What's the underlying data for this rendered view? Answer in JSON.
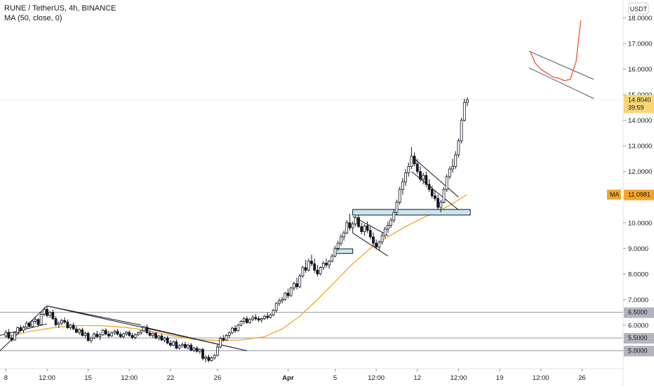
{
  "header": {
    "title": "RUNE / TetherUS, 4h, BINANCE",
    "indicator": "MA (50, close, 0)"
  },
  "price_axis": {
    "currency_button": "USDT"
  },
  "chart_data": {
    "type": "candlestick",
    "symbol": "RUNE / TetherUS",
    "interval": "4h",
    "exchange": "BINANCE",
    "ylim": [
      4.3,
      18.7
    ],
    "y_ticks": [
      "5.0000",
      "6.0000",
      "7.0000",
      "8.0000",
      "9.0000",
      "10.0000",
      "11.0000",
      "12.0000",
      "13.0000",
      "14.0000",
      "15.0000",
      "16.0000",
      "17.0000",
      "18.0000"
    ],
    "x_ticks": [
      "8",
      "12:00",
      "15",
      "12:00",
      "22",
      "26",
      "Apr",
      "5",
      "12:00",
      "12",
      "12:00",
      "19",
      "12:00",
      "26"
    ],
    "x_tick_days": [
      8,
      11.5,
      15,
      18.5,
      22,
      26,
      32,
      36,
      39.5,
      43,
      46.5,
      50,
      53.5,
      57
    ],
    "x_range_days": [
      7.5,
      60.5
    ],
    "last_price": {
      "value": "14.8040",
      "countdown": "39:59"
    },
    "ma": {
      "label": "MA",
      "value": "11.0981",
      "period": 50
    },
    "horizontal_levels": [
      "6.5000",
      "5.5000",
      "5.0000"
    ],
    "candles": [
      [
        8.0,
        5.58,
        5.8,
        5.5,
        5.72
      ],
      [
        8.25,
        5.72,
        5.85,
        5.45,
        5.5
      ],
      [
        8.5,
        5.5,
        5.62,
        5.35,
        5.42
      ],
      [
        8.75,
        5.42,
        5.75,
        5.4,
        5.7
      ],
      [
        9.0,
        5.7,
        5.95,
        5.65,
        5.9
      ],
      [
        9.25,
        5.9,
        6.0,
        5.75,
        5.8
      ],
      [
        9.5,
        5.8,
        5.98,
        5.7,
        5.92
      ],
      [
        9.75,
        5.92,
        6.15,
        5.85,
        6.08
      ],
      [
        10.0,
        6.08,
        6.12,
        5.88,
        5.95
      ],
      [
        10.25,
        5.95,
        6.2,
        5.9,
        6.15
      ],
      [
        10.5,
        6.15,
        6.3,
        6.05,
        6.22
      ],
      [
        10.75,
        6.22,
        6.28,
        5.95,
        6.02
      ],
      [
        11.0,
        6.02,
        6.5,
        6.0,
        6.42
      ],
      [
        11.25,
        6.42,
        6.7,
        6.35,
        6.62
      ],
      [
        11.5,
        6.62,
        6.72,
        6.3,
        6.38
      ],
      [
        11.75,
        6.38,
        6.55,
        6.28,
        6.5
      ],
      [
        12.0,
        6.5,
        6.6,
        6.2,
        6.25
      ],
      [
        12.25,
        6.25,
        6.35,
        5.95,
        6.02
      ],
      [
        12.5,
        6.02,
        6.15,
        5.9,
        6.08
      ],
      [
        12.75,
        6.08,
        6.25,
        6.0,
        6.18
      ],
      [
        13.0,
        6.18,
        6.3,
        6.05,
        6.12
      ],
      [
        13.25,
        6.12,
        6.22,
        5.85,
        5.9
      ],
      [
        13.5,
        5.9,
        6.05,
        5.82,
        6.0
      ],
      [
        13.75,
        6.0,
        6.1,
        5.8,
        5.85
      ],
      [
        14.0,
        5.85,
        5.95,
        5.68,
        5.72
      ],
      [
        14.25,
        5.72,
        5.88,
        5.62,
        5.82
      ],
      [
        14.5,
        5.82,
        5.9,
        5.55,
        5.6
      ],
      [
        14.75,
        5.6,
        5.75,
        5.5,
        5.68
      ],
      [
        15.0,
        5.68,
        5.75,
        5.35,
        5.4
      ],
      [
        15.25,
        5.4,
        5.55,
        5.3,
        5.5
      ],
      [
        15.5,
        5.5,
        5.72,
        5.45,
        5.65
      ],
      [
        15.75,
        5.65,
        5.78,
        5.5,
        5.55
      ],
      [
        16.0,
        5.55,
        5.7,
        5.42,
        5.62
      ],
      [
        16.25,
        5.62,
        5.85,
        5.58,
        5.8
      ],
      [
        16.5,
        5.8,
        5.88,
        5.6,
        5.65
      ],
      [
        16.75,
        5.65,
        5.78,
        5.5,
        5.58
      ],
      [
        17.0,
        5.58,
        5.75,
        5.55,
        5.7
      ],
      [
        17.25,
        5.7,
        5.82,
        5.62,
        5.76
      ],
      [
        17.5,
        5.76,
        5.86,
        5.6,
        5.64
      ],
      [
        17.75,
        5.64,
        5.74,
        5.5,
        5.55
      ],
      [
        18.0,
        5.55,
        5.7,
        5.48,
        5.66
      ],
      [
        18.25,
        5.66,
        5.78,
        5.58,
        5.72
      ],
      [
        18.5,
        5.72,
        5.8,
        5.55,
        5.6
      ],
      [
        18.75,
        5.6,
        5.7,
        5.45,
        5.52
      ],
      [
        19.0,
        5.52,
        5.68,
        5.45,
        5.62
      ],
      [
        19.25,
        5.62,
        5.76,
        5.58,
        5.7
      ],
      [
        19.5,
        5.7,
        5.82,
        5.62,
        5.78
      ],
      [
        19.75,
        5.78,
        5.98,
        5.72,
        5.92
      ],
      [
        20.0,
        5.92,
        6.02,
        5.65,
        5.7
      ],
      [
        20.25,
        5.7,
        5.8,
        5.55,
        5.6
      ],
      [
        20.5,
        5.6,
        5.72,
        5.5,
        5.68
      ],
      [
        20.75,
        5.68,
        5.74,
        5.45,
        5.5
      ],
      [
        21.0,
        5.5,
        5.62,
        5.4,
        5.58
      ],
      [
        21.25,
        5.58,
        5.66,
        5.38,
        5.42
      ],
      [
        21.5,
        5.42,
        5.55,
        5.32,
        5.5
      ],
      [
        21.75,
        5.5,
        5.58,
        5.25,
        5.3
      ],
      [
        22.0,
        5.3,
        5.42,
        5.15,
        5.22
      ],
      [
        22.25,
        5.22,
        5.4,
        5.18,
        5.35
      ],
      [
        22.5,
        5.35,
        5.45,
        5.05,
        5.1
      ],
      [
        22.75,
        5.1,
        5.25,
        5.05,
        5.2
      ],
      [
        23.0,
        5.2,
        5.32,
        5.12,
        5.25
      ],
      [
        23.25,
        5.25,
        5.35,
        5.08,
        5.12
      ],
      [
        23.5,
        5.12,
        5.28,
        5.05,
        5.22
      ],
      [
        23.75,
        5.22,
        5.3,
        4.98,
        5.02
      ],
      [
        24.0,
        5.02,
        5.15,
        4.95,
        5.1
      ],
      [
        24.25,
        5.1,
        5.18,
        4.92,
        4.98
      ],
      [
        24.5,
        4.98,
        5.1,
        4.88,
        5.05
      ],
      [
        24.75,
        5.05,
        5.12,
        4.62,
        4.7
      ],
      [
        25.0,
        4.7,
        4.82,
        4.55,
        4.75
      ],
      [
        25.25,
        4.75,
        4.85,
        4.55,
        4.62
      ],
      [
        25.5,
        4.62,
        4.78,
        4.58,
        4.72
      ],
      [
        25.75,
        4.72,
        4.88,
        4.65,
        4.82
      ],
      [
        26.0,
        4.82,
        5.25,
        4.78,
        5.15
      ],
      [
        26.25,
        5.15,
        5.55,
        5.1,
        5.48
      ],
      [
        26.5,
        5.48,
        5.62,
        5.35,
        5.42
      ],
      [
        26.75,
        5.42,
        5.65,
        5.38,
        5.6
      ],
      [
        27.0,
        5.6,
        5.75,
        5.5,
        5.7
      ],
      [
        27.25,
        5.7,
        5.95,
        5.65,
        5.88
      ],
      [
        27.5,
        5.88,
        6.0,
        5.7,
        5.78
      ],
      [
        27.75,
        5.78,
        6.05,
        5.75,
        6.0
      ],
      [
        28.0,
        6.0,
        6.2,
        5.95,
        6.15
      ],
      [
        28.25,
        6.15,
        6.32,
        6.05,
        6.25
      ],
      [
        28.5,
        6.25,
        6.35,
        6.05,
        6.1
      ],
      [
        28.75,
        6.1,
        6.28,
        6.05,
        6.22
      ],
      [
        29.0,
        6.22,
        6.38,
        6.15,
        6.3
      ],
      [
        29.25,
        6.3,
        6.42,
        6.18,
        6.25
      ],
      [
        29.5,
        6.25,
        6.35,
        6.12,
        6.2
      ],
      [
        29.75,
        6.2,
        6.3,
        6.1,
        6.26
      ],
      [
        30.0,
        6.26,
        6.4,
        6.2,
        6.35
      ],
      [
        30.25,
        6.35,
        6.5,
        6.22,
        6.3
      ],
      [
        30.5,
        6.3,
        6.45,
        6.25,
        6.4
      ],
      [
        30.75,
        6.4,
        6.62,
        6.35,
        6.58
      ],
      [
        31.0,
        6.58,
        6.9,
        6.5,
        6.85
      ],
      [
        31.25,
        6.85,
        7.05,
        6.75,
        6.95
      ],
      [
        31.5,
        6.95,
        7.1,
        6.85,
        7.0
      ],
      [
        31.75,
        7.0,
        7.3,
        6.95,
        7.25
      ],
      [
        32.0,
        7.25,
        7.42,
        7.05,
        7.15
      ],
      [
        32.25,
        7.15,
        7.5,
        7.1,
        7.45
      ],
      [
        32.5,
        7.45,
        7.7,
        7.35,
        7.62
      ],
      [
        32.75,
        7.62,
        7.85,
        7.4,
        7.5
      ],
      [
        33.0,
        7.5,
        8.0,
        7.45,
        7.92
      ],
      [
        33.25,
        7.92,
        8.32,
        7.85,
        8.25
      ],
      [
        33.5,
        8.25,
        8.55,
        8.05,
        8.15
      ],
      [
        33.75,
        8.15,
        8.6,
        8.1,
        8.5
      ],
      [
        34.0,
        8.5,
        8.75,
        8.3,
        8.4
      ],
      [
        34.25,
        8.4,
        8.6,
        8.05,
        8.15
      ],
      [
        34.5,
        8.15,
        8.35,
        7.9,
        8.0
      ],
      [
        34.75,
        8.0,
        8.3,
        7.95,
        8.25
      ],
      [
        35.0,
        8.25,
        8.5,
        8.15,
        8.42
      ],
      [
        35.25,
        8.42,
        8.6,
        8.25,
        8.35
      ],
      [
        35.5,
        8.35,
        8.55,
        8.2,
        8.5
      ],
      [
        35.75,
        8.5,
        8.78,
        8.45,
        8.7
      ],
      [
        36.0,
        8.7,
        9.1,
        8.65,
        9.0
      ],
      [
        36.25,
        9.0,
        9.3,
        8.9,
        9.2
      ],
      [
        36.5,
        9.2,
        9.55,
        9.1,
        9.45
      ],
      [
        36.75,
        9.45,
        9.7,
        9.3,
        9.6
      ],
      [
        37.0,
        9.6,
        10.1,
        9.55,
        10.0
      ],
      [
        37.25,
        10.0,
        10.35,
        9.7,
        9.8
      ],
      [
        37.5,
        9.8,
        10.05,
        9.6,
        9.95
      ],
      [
        37.75,
        9.95,
        10.28,
        9.85,
        10.2
      ],
      [
        38.0,
        10.2,
        10.3,
        9.8,
        9.85
      ],
      [
        38.25,
        9.85,
        10.0,
        9.55,
        9.65
      ],
      [
        38.5,
        9.65,
        9.95,
        9.5,
        9.88
      ],
      [
        38.75,
        9.88,
        10.05,
        9.6,
        9.7
      ],
      [
        39.0,
        9.7,
        9.85,
        9.35,
        9.45
      ],
      [
        39.25,
        9.45,
        9.62,
        9.1,
        9.2
      ],
      [
        39.5,
        9.2,
        9.35,
        8.95,
        9.05
      ],
      [
        39.75,
        9.05,
        9.3,
        8.9,
        9.25
      ],
      [
        40.0,
        9.25,
        9.6,
        9.15,
        9.5
      ],
      [
        40.25,
        9.5,
        9.85,
        9.4,
        9.75
      ],
      [
        40.5,
        9.75,
        10.05,
        9.6,
        9.9
      ],
      [
        40.75,
        9.9,
        10.2,
        9.8,
        10.1
      ],
      [
        41.0,
        10.1,
        10.5,
        10.0,
        10.4
      ],
      [
        41.25,
        10.4,
        10.9,
        10.3,
        10.8
      ],
      [
        41.5,
        10.8,
        11.4,
        10.7,
        11.3
      ],
      [
        41.75,
        11.3,
        11.75,
        11.1,
        11.6
      ],
      [
        42.0,
        11.6,
        12.1,
        11.45,
        11.95
      ],
      [
        42.25,
        11.95,
        12.35,
        11.8,
        12.2
      ],
      [
        42.5,
        12.2,
        12.95,
        12.1,
        12.6
      ],
      [
        42.75,
        12.6,
        12.75,
        12.2,
        12.3
      ],
      [
        43.0,
        12.3,
        12.5,
        11.9,
        12.0
      ],
      [
        43.25,
        12.0,
        12.2,
        11.6,
        11.7
      ],
      [
        43.5,
        11.7,
        11.95,
        11.5,
        11.85
      ],
      [
        43.75,
        11.85,
        12.0,
        11.4,
        11.5
      ],
      [
        44.0,
        11.5,
        11.7,
        11.2,
        11.3
      ],
      [
        44.25,
        11.3,
        11.45,
        10.95,
        11.05
      ],
      [
        44.5,
        11.05,
        11.25,
        10.85,
        10.95
      ],
      [
        44.75,
        10.95,
        11.1,
        10.5,
        10.6
      ],
      [
        45.0,
        10.6,
        10.9,
        10.4,
        10.8
      ],
      [
        45.25,
        10.8,
        11.4,
        10.75,
        11.3
      ],
      [
        45.5,
        11.3,
        11.9,
        11.2,
        11.8
      ],
      [
        45.75,
        11.8,
        12.2,
        11.7,
        12.1
      ],
      [
        46.0,
        12.1,
        12.5,
        11.95,
        12.2
      ],
      [
        46.25,
        12.2,
        12.8,
        12.1,
        12.65
      ],
      [
        46.5,
        12.65,
        13.3,
        12.55,
        13.2
      ],
      [
        46.75,
        13.2,
        14.1,
        13.1,
        14.0
      ],
      [
        47.0,
        14.0,
        14.85,
        13.95,
        14.7
      ],
      [
        47.25,
        14.7,
        14.9,
        14.55,
        14.8
      ]
    ],
    "ma50": [
      [
        8.0,
        5.55
      ],
      [
        10.0,
        5.75
      ],
      [
        12.0,
        5.9
      ],
      [
        14.0,
        5.98
      ],
      [
        16.0,
        5.98
      ],
      [
        18.0,
        5.92
      ],
      [
        20.0,
        5.8
      ],
      [
        22.0,
        5.6
      ],
      [
        24.0,
        5.45
      ],
      [
        26.0,
        5.4
      ],
      [
        28.0,
        5.42
      ],
      [
        30.0,
        5.55
      ],
      [
        31.5,
        5.85
      ],
      [
        33.0,
        6.35
      ],
      [
        34.5,
        7.0
      ],
      [
        36.0,
        7.7
      ],
      [
        37.5,
        8.4
      ],
      [
        39.0,
        9.0
      ],
      [
        40.5,
        9.45
      ],
      [
        42.0,
        9.85
      ],
      [
        43.5,
        10.2
      ],
      [
        45.0,
        10.5
      ],
      [
        46.0,
        10.75
      ],
      [
        47.2,
        11.1
      ]
    ],
    "trendlines": [
      [
        7.5,
        5.0,
        11.5,
        6.75
      ],
      [
        7.5,
        5.6,
        11.5,
        6.05
      ],
      [
        11.5,
        6.75,
        19.5,
        6.0
      ],
      [
        11.5,
        6.75,
        28.5,
        5.0
      ],
      [
        28.5,
        5.0,
        19.5,
        5.95
      ],
      [
        7.5,
        7.3,
        7.5,
        7.3
      ],
      [
        37.5,
        10.25,
        40.5,
        9.5
      ],
      [
        37.5,
        9.6,
        40.5,
        8.7
      ],
      [
        42.5,
        12.6,
        46.5,
        11.0
      ],
      [
        42.5,
        12.0,
        46.5,
        10.5
      ]
    ],
    "zones": [
      [
        36.0,
        37.5,
        8.8,
        8.98
      ],
      [
        37.5,
        47.5,
        10.3,
        10.52
      ]
    ],
    "projection": {
      "channel": [
        [
          52.5,
          16.7,
          58.0,
          15.6
        ],
        [
          52.5,
          16.05,
          58.0,
          14.85
        ]
      ],
      "path": [
        [
          52.6,
          16.7
        ],
        [
          53.0,
          16.25
        ],
        [
          53.5,
          16.0
        ],
        [
          54.0,
          15.85
        ],
        [
          54.5,
          15.7
        ],
        [
          55.0,
          15.65
        ],
        [
          55.5,
          15.55
        ],
        [
          56.0,
          15.6
        ],
        [
          56.5,
          16.3
        ],
        [
          56.9,
          17.9
        ]
      ]
    }
  }
}
